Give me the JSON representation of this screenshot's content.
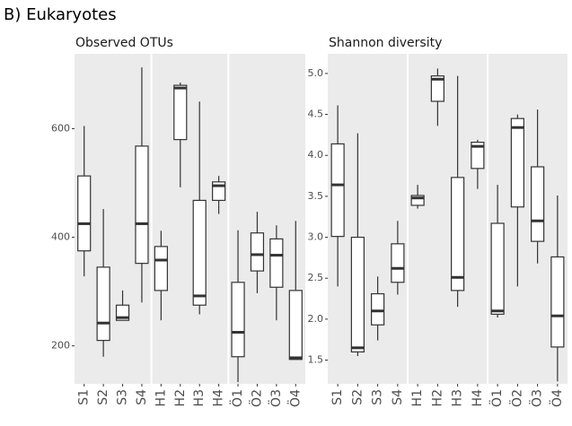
{
  "title": "B) Eukaryotes",
  "chart_data": [
    {
      "type": "box",
      "title": "Observed OTUs",
      "categories": [
        "S1",
        "S2",
        "S3",
        "S4",
        "H1",
        "H2",
        "H3",
        "H4",
        "Ö1",
        "Ö2",
        "Ö3",
        "Ö4"
      ],
      "min": [
        328,
        180,
        247,
        280,
        247,
        492,
        258,
        443,
        133,
        297,
        247,
        175
      ],
      "q1": [
        375,
        210,
        247,
        352,
        302,
        580,
        275,
        468,
        180,
        338,
        308,
        175
      ],
      "median": [
        425,
        242,
        252,
        425,
        358,
        675,
        292,
        495,
        225,
        368,
        367,
        178
      ],
      "q3": [
        513,
        345,
        275,
        568,
        383,
        680,
        468,
        502,
        317,
        408,
        397,
        302
      ],
      "max": [
        605,
        452,
        302,
        713,
        412,
        685,
        650,
        513,
        413,
        447,
        422,
        430
      ],
      "ylim": [
        130,
        738
      ],
      "yticks": [
        200,
        400,
        600
      ]
    },
    {
      "type": "box",
      "title": "Shannon diversity",
      "categories": [
        "S1",
        "S2",
        "S3",
        "S4",
        "H1",
        "H2",
        "H3",
        "H4",
        "Ö1",
        "Ö2",
        "Ö3",
        "Ö4"
      ],
      "min": [
        2.4,
        1.55,
        1.74,
        2.3,
        3.35,
        4.36,
        2.15,
        3.59,
        2.02,
        2.4,
        2.68,
        1.24
      ],
      "q1": [
        3.01,
        1.6,
        1.93,
        2.45,
        3.39,
        4.66,
        2.35,
        3.84,
        2.06,
        3.37,
        2.95,
        1.66
      ],
      "median": [
        3.64,
        1.65,
        2.1,
        2.62,
        3.48,
        4.93,
        2.51,
        4.11,
        2.1,
        4.34,
        3.2,
        2.04
      ],
      "q3": [
        4.14,
        3.0,
        2.31,
        2.92,
        3.51,
        4.97,
        3.73,
        4.16,
        3.17,
        4.45,
        3.86,
        2.76
      ],
      "max": [
        4.61,
        4.27,
        2.52,
        3.2,
        3.64,
        5.06,
        4.97,
        4.19,
        3.64,
        4.5,
        4.56,
        3.51
      ],
      "ylim": [
        1.21,
        5.24
      ],
      "yticks": [
        1.5,
        {
          "value": 2,
          "label": "2.0"
        },
        2.5,
        {
          "value": 3,
          "label": "3.0"
        },
        3.5,
        {
          "value": 4,
          "label": "4.0"
        },
        4.5,
        {
          "value": 5,
          "label": "5.0"
        }
      ]
    }
  ]
}
